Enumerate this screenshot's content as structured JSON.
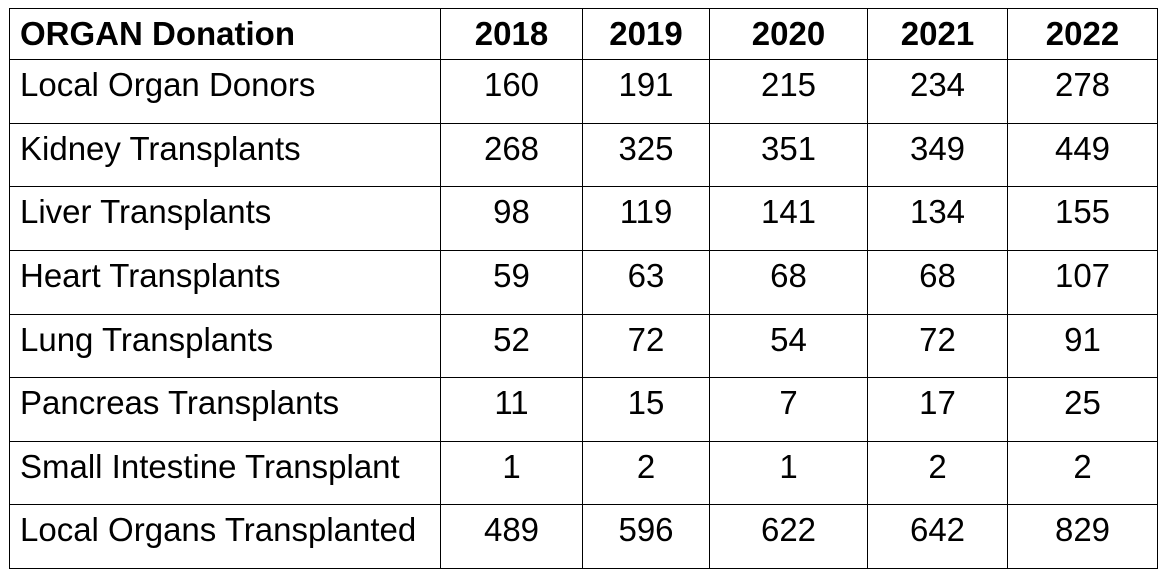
{
  "chart_data": {
    "type": "table",
    "columns": [
      "ORGAN Donation",
      "2018",
      "2019",
      "2020",
      "2021",
      "2022"
    ],
    "rows": [
      {
        "label": "Local Organ Donors",
        "values": [
          160,
          191,
          215,
          234,
          278
        ]
      },
      {
        "label": "Kidney Transplants",
        "values": [
          268,
          325,
          351,
          349,
          449
        ]
      },
      {
        "label": "Liver Transplants",
        "values": [
          98,
          119,
          141,
          134,
          155
        ]
      },
      {
        "label": "Heart Transplants",
        "values": [
          59,
          63,
          68,
          68,
          107
        ]
      },
      {
        "label": "Lung Transplants",
        "values": [
          52,
          72,
          54,
          72,
          91
        ]
      },
      {
        "label": "Pancreas Transplants",
        "values": [
          11,
          15,
          7,
          17,
          25
        ]
      },
      {
        "label": "Small Intestine Transplant",
        "values": [
          1,
          2,
          1,
          2,
          2
        ]
      },
      {
        "label": "Local Organs Transplanted",
        "values": [
          489,
          596,
          622,
          642,
          829
        ]
      }
    ]
  }
}
